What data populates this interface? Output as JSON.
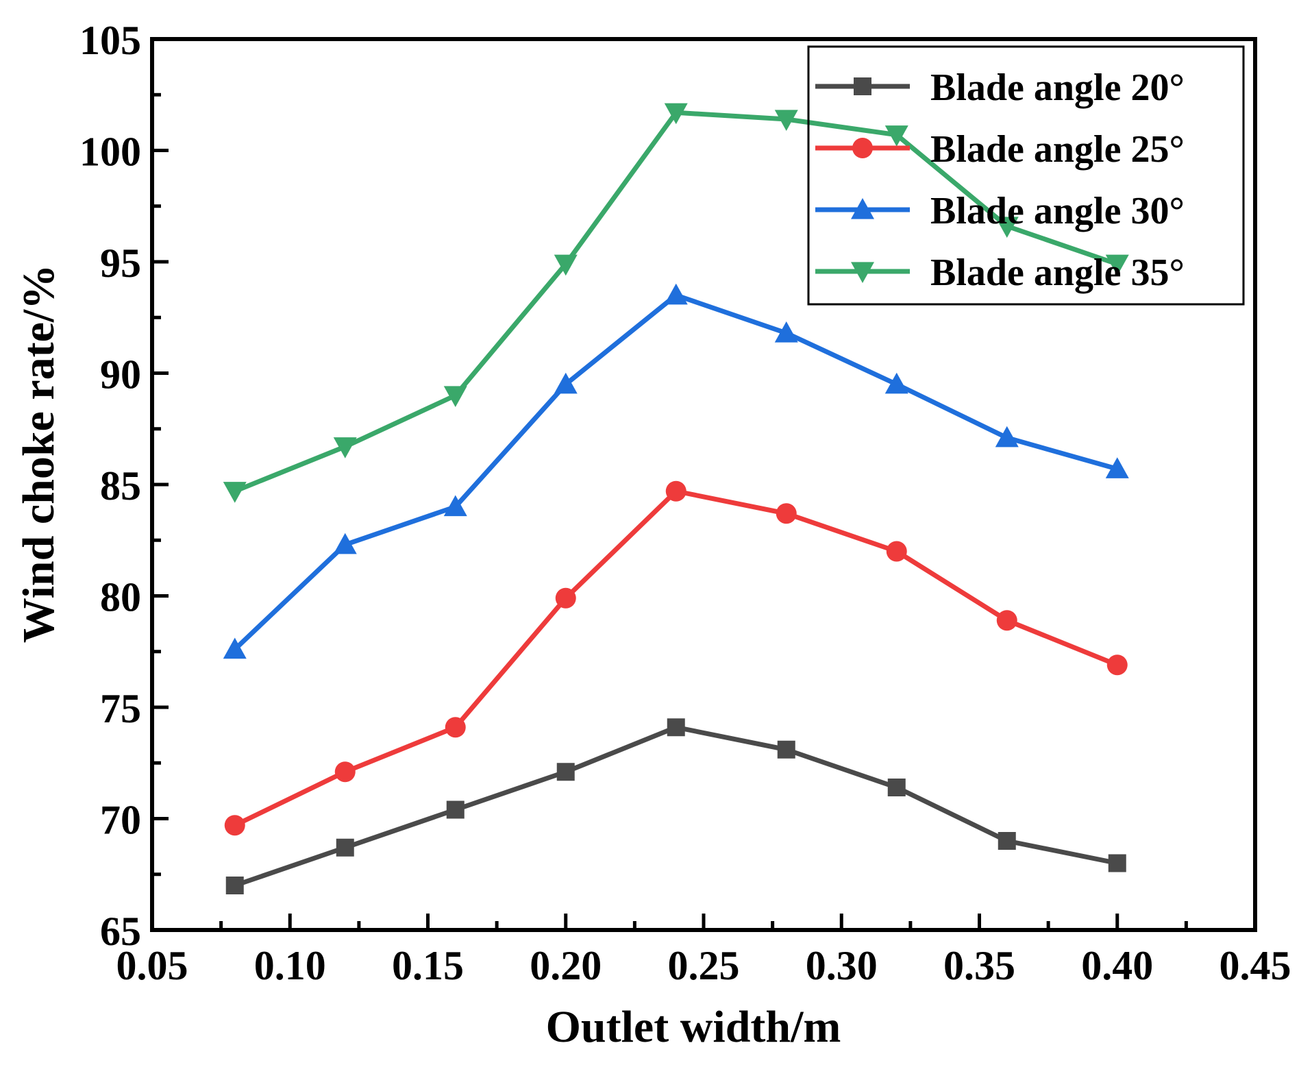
{
  "chart_data": {
    "type": "line",
    "title": "",
    "xlabel": "Outlet width/m",
    "ylabel": "Wind choke rate/%",
    "xlim": [
      0.05,
      0.45
    ],
    "ylim": [
      65,
      105
    ],
    "xticks": [
      0.05,
      0.1,
      0.15,
      0.2,
      0.25,
      0.3,
      0.35,
      0.4,
      0.45
    ],
    "xtick_labels": [
      "0.05",
      "0.10",
      "0.15",
      "0.20",
      "0.25",
      "0.30",
      "0.35",
      "0.40",
      "0.45"
    ],
    "yticks": [
      65,
      70,
      75,
      80,
      85,
      90,
      95,
      100,
      105
    ],
    "ytick_labels": [
      "65",
      "70",
      "75",
      "80",
      "85",
      "90",
      "95",
      "100",
      "105"
    ],
    "grid": false,
    "legend_position": "top-right",
    "x": [
      0.08,
      0.12,
      0.16,
      0.2,
      0.24,
      0.28,
      0.32,
      0.36,
      0.4
    ],
    "series": [
      {
        "name": "Blade angle 20°",
        "color": "#4a4a4a",
        "marker": "square",
        "values": [
          67.0,
          68.7,
          70.4,
          72.1,
          74.1,
          73.1,
          71.4,
          69.0,
          68.0
        ]
      },
      {
        "name": "Blade angle 25°",
        "color": "#ee3b3b",
        "marker": "circle",
        "values": [
          69.7,
          72.1,
          74.1,
          79.9,
          84.7,
          83.7,
          82.0,
          78.9,
          76.9
        ]
      },
      {
        "name": "Blade angle 30°",
        "color": "#1f6fdc",
        "marker": "triangle-up",
        "values": [
          77.6,
          82.3,
          84.0,
          89.5,
          93.5,
          91.8,
          89.5,
          87.1,
          85.7
        ]
      },
      {
        "name": "Blade angle 35°",
        "color": "#3aa86a",
        "marker": "triangle-down",
        "values": [
          84.7,
          86.7,
          89.0,
          94.9,
          101.7,
          101.4,
          100.7,
          96.6,
          94.9
        ]
      }
    ]
  }
}
